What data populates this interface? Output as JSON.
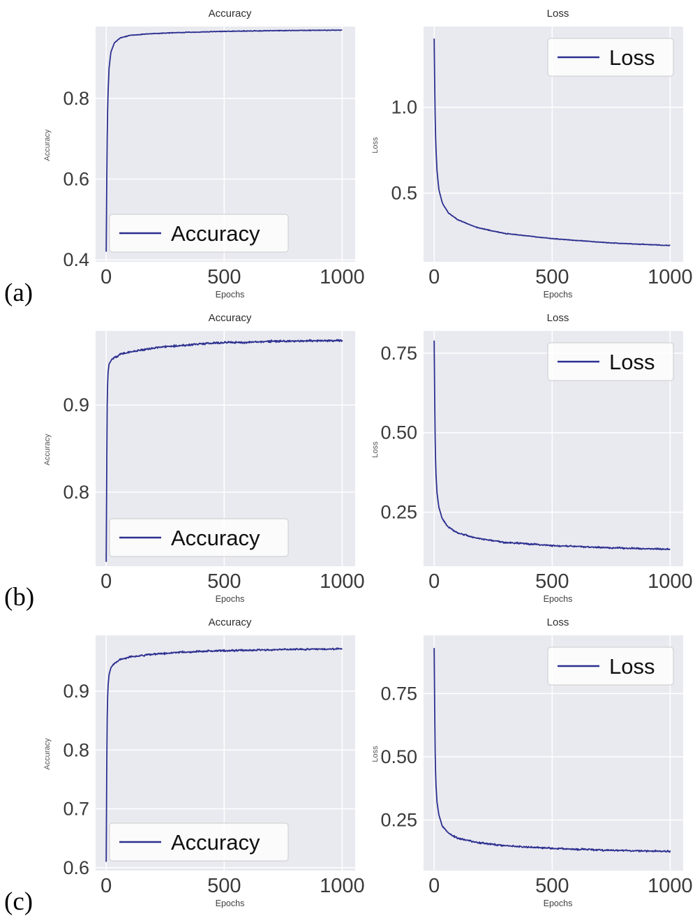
{
  "figure": {
    "row_labels": [
      "(a)",
      "(b)",
      "(c)"
    ]
  },
  "colors": {
    "line": "#2b2f8e",
    "plot_bg": "#e9e9f0",
    "grid": "#ffffff",
    "tick_text": "#3a3a3a",
    "legend_bg": "#ffffff",
    "legend_border": "#cccccc"
  },
  "chart_data": [
    {
      "type": "line",
      "title": "Accuracy",
      "xlabel": "Epochs",
      "ylabel": "Accuracy",
      "legend": "Accuracy",
      "legend_position": "lower-left",
      "xlim": [
        -45,
        1055
      ],
      "ylim": [
        0.395,
        0.978
      ],
      "xticks": [
        0,
        500,
        1000
      ],
      "xtick_labels": [
        "0",
        "500",
        "1000"
      ],
      "yticks": [
        0.4,
        0.6,
        0.8
      ],
      "ytick_labels": [
        "0.4",
        "0.6",
        "0.8"
      ],
      "grid": true,
      "points": [
        [
          0,
          0.42
        ],
        [
          2,
          0.58
        ],
        [
          4,
          0.7
        ],
        [
          7,
          0.8
        ],
        [
          12,
          0.875
        ],
        [
          20,
          0.915
        ],
        [
          35,
          0.938
        ],
        [
          60,
          0.95
        ],
        [
          100,
          0.956
        ],
        [
          180,
          0.96
        ],
        [
          300,
          0.963
        ],
        [
          500,
          0.966
        ],
        [
          750,
          0.968
        ],
        [
          1000,
          0.969
        ]
      ],
      "noise": 0.0012
    },
    {
      "type": "line",
      "title": "Loss",
      "xlabel": "Epochs",
      "ylabel": "Loss",
      "legend": "Loss",
      "legend_position": "upper-right",
      "xlim": [
        -45,
        1055
      ],
      "ylim": [
        0.1,
        1.47
      ],
      "xticks": [
        0,
        500,
        1000
      ],
      "xtick_labels": [
        "0",
        "500",
        "1000"
      ],
      "yticks": [
        0.5,
        1.0
      ],
      "ytick_labels": [
        "0.5",
        "1.0"
      ],
      "grid": true,
      "points": [
        [
          0,
          1.4
        ],
        [
          2,
          1.15
        ],
        [
          4,
          0.95
        ],
        [
          7,
          0.78
        ],
        [
          12,
          0.63
        ],
        [
          20,
          0.52
        ],
        [
          35,
          0.44
        ],
        [
          60,
          0.385
        ],
        [
          100,
          0.345
        ],
        [
          180,
          0.3
        ],
        [
          300,
          0.265
        ],
        [
          500,
          0.235
        ],
        [
          750,
          0.21
        ],
        [
          1000,
          0.195
        ]
      ],
      "noise": 0.003
    },
    {
      "type": "line",
      "title": "Accuracy",
      "xlabel": "Epochs",
      "ylabel": "Accuracy",
      "legend": "Accuracy",
      "legend_position": "lower-left",
      "xlim": [
        -45,
        1055
      ],
      "ylim": [
        0.715,
        0.985
      ],
      "xticks": [
        0,
        500,
        1000
      ],
      "xtick_labels": [
        "0",
        "500",
        "1000"
      ],
      "yticks": [
        0.8,
        0.9
      ],
      "ytick_labels": [
        "0.8",
        "0.9"
      ],
      "grid": true,
      "points": [
        [
          0,
          0.72
        ],
        [
          2,
          0.82
        ],
        [
          4,
          0.9
        ],
        [
          7,
          0.935
        ],
        [
          12,
          0.947
        ],
        [
          25,
          0.953
        ],
        [
          60,
          0.958
        ],
        [
          120,
          0.962
        ],
        [
          250,
          0.967
        ],
        [
          450,
          0.971
        ],
        [
          700,
          0.973
        ],
        [
          1000,
          0.974
        ]
      ],
      "noise": 0.0018
    },
    {
      "type": "line",
      "title": "Loss",
      "xlabel": "Epochs",
      "ylabel": "Loss",
      "legend": "Loss",
      "legend_position": "upper-right",
      "xlim": [
        -45,
        1055
      ],
      "ylim": [
        0.08,
        0.82
      ],
      "xticks": [
        0,
        500,
        1000
      ],
      "xtick_labels": [
        "0",
        "500",
        "1000"
      ],
      "yticks": [
        0.25,
        0.5,
        0.75
      ],
      "ytick_labels": [
        "0.25",
        "0.50",
        "0.75"
      ],
      "grid": true,
      "points": [
        [
          0,
          0.79
        ],
        [
          2,
          0.62
        ],
        [
          4,
          0.48
        ],
        [
          7,
          0.38
        ],
        [
          12,
          0.31
        ],
        [
          20,
          0.265
        ],
        [
          35,
          0.228
        ],
        [
          60,
          0.203
        ],
        [
          100,
          0.185
        ],
        [
          180,
          0.168
        ],
        [
          300,
          0.155
        ],
        [
          500,
          0.145
        ],
        [
          750,
          0.138
        ],
        [
          1000,
          0.133
        ]
      ],
      "noise": 0.0035
    },
    {
      "type": "line",
      "title": "Accuracy",
      "xlabel": "Epochs",
      "ylabel": "Accuracy",
      "legend": "Accuracy",
      "legend_position": "lower-left",
      "xlim": [
        -45,
        1055
      ],
      "ylim": [
        0.595,
        0.995
      ],
      "xticks": [
        0,
        500,
        1000
      ],
      "xtick_labels": [
        "0",
        "500",
        "1000"
      ],
      "yticks": [
        0.6,
        0.7,
        0.8,
        0.9
      ],
      "ytick_labels": [
        "0.6",
        "0.7",
        "0.8",
        "0.9"
      ],
      "grid": true,
      "points": [
        [
          0,
          0.61
        ],
        [
          2,
          0.76
        ],
        [
          4,
          0.855
        ],
        [
          7,
          0.905
        ],
        [
          12,
          0.928
        ],
        [
          20,
          0.94
        ],
        [
          35,
          0.948
        ],
        [
          60,
          0.954
        ],
        [
          100,
          0.958
        ],
        [
          180,
          0.962
        ],
        [
          300,
          0.966
        ],
        [
          500,
          0.969
        ],
        [
          750,
          0.971
        ],
        [
          1000,
          0.972
        ]
      ],
      "noise": 0.0022
    },
    {
      "type": "line",
      "title": "Loss",
      "xlabel": "Epochs",
      "ylabel": "Loss",
      "legend": "Loss",
      "legend_position": "upper-right",
      "xlim": [
        -45,
        1055
      ],
      "ylim": [
        0.05,
        0.98
      ],
      "xticks": [
        0,
        500,
        1000
      ],
      "xtick_labels": [
        "0",
        "500",
        "1000"
      ],
      "yticks": [
        0.25,
        0.5,
        0.75
      ],
      "ytick_labels": [
        "0.25",
        "0.50",
        "0.75"
      ],
      "grid": true,
      "points": [
        [
          0,
          0.93
        ],
        [
          2,
          0.7
        ],
        [
          4,
          0.52
        ],
        [
          7,
          0.4
        ],
        [
          12,
          0.32
        ],
        [
          20,
          0.27
        ],
        [
          35,
          0.225
        ],
        [
          60,
          0.198
        ],
        [
          100,
          0.178
        ],
        [
          180,
          0.162
        ],
        [
          300,
          0.148
        ],
        [
          500,
          0.138
        ],
        [
          750,
          0.13
        ],
        [
          1000,
          0.126
        ]
      ],
      "noise": 0.005
    }
  ]
}
